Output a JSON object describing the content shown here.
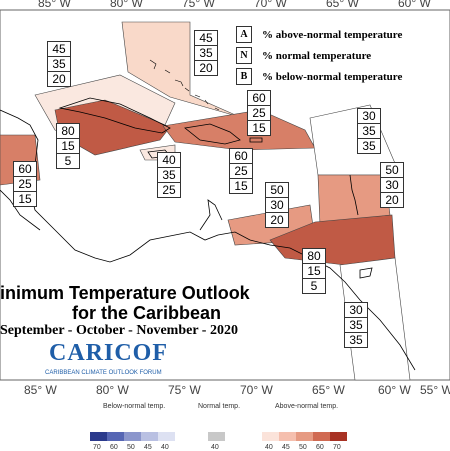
{
  "map": {
    "title_line1": "inimum Temperature Outlook",
    "title_line2": "for the Caribbean",
    "period": "September - October - November - 2020",
    "longitude_labels": [
      "85° W",
      "80° W",
      "75° W",
      "70° W",
      "65° W",
      "60° W",
      "55° W"
    ],
    "legend": [
      {
        "key": "A",
        "text": "% above-normal temperature"
      },
      {
        "key": "N",
        "text": "% normal temperature"
      },
      {
        "key": "B",
        "text": "% below-normal temperature"
      }
    ],
    "probability_boxes": [
      {
        "region": "bahamas",
        "values": [
          "45",
          "35",
          "20"
        ],
        "fill": "#f9d9c9"
      },
      {
        "region": "bahamas-left",
        "values": [
          "45",
          "35",
          "20"
        ],
        "fill": "#f9d9c9"
      },
      {
        "region": "cuba",
        "values": [
          "80",
          "15",
          "5"
        ],
        "fill": "#c05a45"
      },
      {
        "region": "hispaniola",
        "values": [
          "60",
          "25",
          "15"
        ],
        "fill": "#d77f67"
      },
      {
        "region": "belize",
        "values": [
          "60",
          "25",
          "15"
        ],
        "fill": "#d77f67"
      },
      {
        "region": "jamaica",
        "values": [
          "40",
          "35",
          "25"
        ],
        "fill": "#fae8e0"
      },
      {
        "region": "hispaniola-south",
        "values": [
          "60",
          "25",
          "15"
        ],
        "fill": "#d77f67"
      },
      {
        "region": "east-atlantic",
        "values": [
          "30",
          "35",
          "35"
        ],
        "fill": "#ffffff"
      },
      {
        "region": "abc-islands",
        "values": [
          "50",
          "30",
          "20"
        ],
        "fill": "#e69a82"
      },
      {
        "region": "leeward",
        "values": [
          "50",
          "30",
          "20"
        ],
        "fill": "#e69a82"
      },
      {
        "region": "trinidad",
        "values": [
          "80",
          "15",
          "5"
        ],
        "fill": "#c05a45"
      },
      {
        "region": "guianas",
        "values": [
          "30",
          "35",
          "35"
        ],
        "fill": "#ffffff"
      }
    ],
    "logo": {
      "name": "CARICOF",
      "subtitle": "CARIBBEAN CLIMATE OUTLOOK FORUM"
    },
    "colorbar": {
      "below_title": "Below-normal temp.",
      "normal_title": "Normal temp.",
      "above_title": "Above-normal temp.",
      "below": [
        {
          "label": "70",
          "color": "#2b3a8c"
        },
        {
          "label": "60",
          "color": "#5666b4"
        },
        {
          "label": "50",
          "color": "#8b96cc"
        },
        {
          "label": "45",
          "color": "#b9c0e2"
        },
        {
          "label": "40",
          "color": "#dde1f2"
        }
      ],
      "normal": [
        {
          "label": "40",
          "color": "#c8c8c8"
        }
      ],
      "above": [
        {
          "label": "40",
          "color": "#fbe3da"
        },
        {
          "label": "45",
          "color": "#f5bfae"
        },
        {
          "label": "50",
          "color": "#e69a82"
        },
        {
          "label": "60",
          "color": "#d06a52"
        },
        {
          "label": "70",
          "color": "#a83224"
        }
      ]
    }
  }
}
